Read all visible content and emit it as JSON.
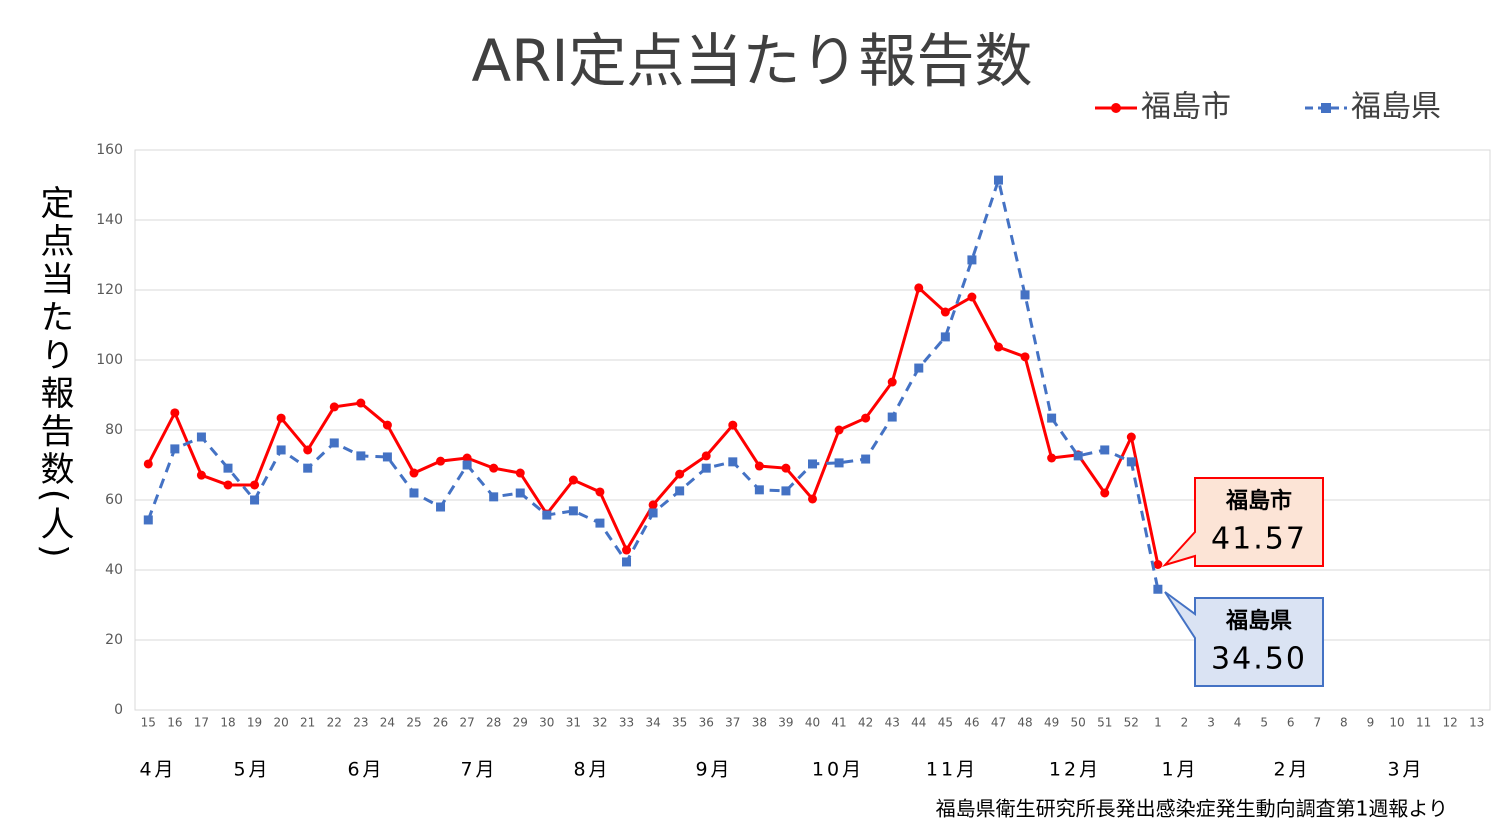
{
  "chart_data": {
    "type": "line",
    "title": "ARI定点当たり報告数",
    "y_label": "定点当たり報告数(人)",
    "source": "福島県衛生研究所長発出感染症発生動向調査第1週報より",
    "categories": [
      "15",
      "16",
      "17",
      "18",
      "19",
      "20",
      "21",
      "22",
      "23",
      "24",
      "25",
      "26",
      "27",
      "28",
      "29",
      "30",
      "31",
      "32",
      "33",
      "34",
      "35",
      "36",
      "37",
      "38",
      "39",
      "40",
      "41",
      "42",
      "43",
      "44",
      "45",
      "46",
      "47",
      "48",
      "49",
      "50",
      "51",
      "52",
      "1",
      "2",
      "3",
      "4",
      "5",
      "6",
      "7",
      "8",
      "9",
      "10",
      "11",
      "12",
      "13"
    ],
    "month_labels": [
      "4月",
      "5月",
      "6月",
      "7月",
      "8月",
      "9月",
      "10月",
      "11月",
      "12月",
      "1月",
      "2月",
      "3月"
    ],
    "ylim": [
      0,
      160
    ],
    "yticks": [
      0,
      20,
      40,
      60,
      80,
      100,
      120,
      140,
      160
    ],
    "grid": true,
    "legend": "top-right",
    "series": [
      {
        "name": "福島市",
        "color": "#ff0000",
        "marker": "circle",
        "dash": false,
        "values": [
          70.3,
          84.9,
          67.1,
          64.3,
          64.3,
          83.4,
          74.3,
          86.6,
          87.7,
          81.4,
          67.7,
          71.1,
          72,
          69.1,
          67.7,
          56,
          65.7,
          62.3,
          45.7,
          58.6,
          67.4,
          72.6,
          81.4,
          69.7,
          69.1,
          60.3,
          80,
          83.4,
          93.7,
          120.6,
          113.7,
          118,
          103.7,
          100.9,
          72,
          72.9,
          62,
          78,
          41.57,
          null,
          null,
          null,
          null,
          null,
          null,
          null,
          null,
          null,
          null,
          null,
          null
        ]
      },
      {
        "name": "福島県",
        "color": "#4472c4",
        "marker": "square",
        "dash": true,
        "values": [
          54.3,
          74.6,
          78,
          69.1,
          60,
          74.3,
          69.1,
          76.3,
          72.6,
          72.3,
          62,
          58,
          70,
          60.9,
          62,
          55.7,
          56.9,
          53.4,
          42.3,
          56.3,
          62.6,
          69.1,
          70.9,
          62.9,
          62.6,
          70.3,
          70.6,
          71.7,
          83.7,
          97.7,
          106.6,
          128.6,
          151.4,
          118.6,
          83.4,
          72.6,
          74.3,
          70.9,
          34.5,
          null,
          null,
          null,
          null,
          null,
          null,
          null,
          null,
          null,
          null,
          null,
          null
        ],
        "value_labels": {
          "38": "34.50"
        }
      }
    ]
  }
}
